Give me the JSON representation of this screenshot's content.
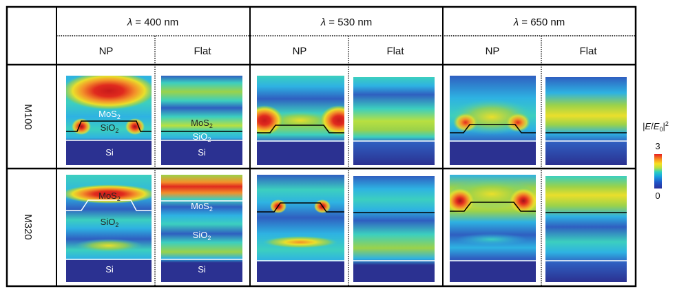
{
  "wavelength_headers": [
    {
      "lambda": "λ",
      "value": " = 400 nm"
    },
    {
      "lambda": "λ",
      "value": " = 530 nm"
    },
    {
      "lambda": "λ",
      "value": " = 650 nm"
    }
  ],
  "sub_headers": [
    "NP",
    "Flat",
    "NP",
    "Flat",
    "NP",
    "Flat"
  ],
  "row_labels": [
    "M100",
    "M320"
  ],
  "layer_labels": {
    "mos2": "MoS",
    "sio2": "SiO",
    "sub2": "2",
    "si": "Si"
  },
  "colorbar": {
    "title_open": "|",
    "title_E": "E",
    "title_slash": "/",
    "title_E0": "E",
    "title_sub0": "0",
    "title_close": "|",
    "title_sup": "2",
    "max_label": "3",
    "min_label": "0",
    "colors": [
      "#2a2f9a",
      "#1f55c8",
      "#18a0e0",
      "#2ad0c0",
      "#b8e040",
      "#f8e020",
      "#f89020",
      "#e82020"
    ]
  },
  "colormap": {
    "deep": "#2b3191",
    "blue": "#2f5fc0",
    "cyan": "#2eb2e2",
    "teal": "#3ccfbf",
    "green": "#9bd24a",
    "yellow": "#eadf2b",
    "orange": "#f3902a",
    "red": "#e02a1e",
    "darkred": "#a0141a"
  }
}
